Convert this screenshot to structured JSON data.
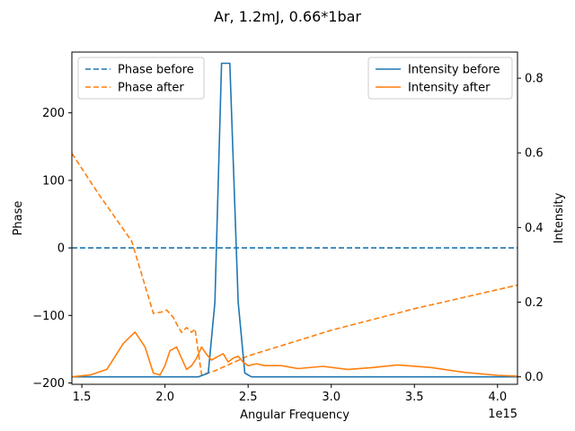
{
  "chart_data": {
    "type": "line",
    "title": "Ar, 1.2mJ, 0.66*1bar",
    "xlabel": "Angular Frequency",
    "x_offset_label": "1e15",
    "xlim": [
      1.44,
      4.12
    ],
    "xticks": [
      1.5,
      2.0,
      2.5,
      3.0,
      3.5,
      4.0
    ],
    "xtick_labels": [
      "1.5",
      "2.0",
      "2.5",
      "3.0",
      "3.5",
      "4.0"
    ],
    "left_axis": {
      "label": "Phase",
      "ylim": [
        -202,
        290
      ],
      "ticks": [
        -200,
        -100,
        0,
        100,
        200
      ],
      "tick_labels": [
        "−200",
        "−100",
        "0",
        "100",
        "200"
      ]
    },
    "right_axis": {
      "label": "Intensity",
      "ylim": [
        -0.02,
        0.87
      ],
      "ticks": [
        0.0,
        0.2,
        0.4,
        0.6,
        0.8
      ],
      "tick_labels": [
        "0.0",
        "0.2",
        "0.4",
        "0.6",
        "0.8"
      ]
    },
    "legend_left": {
      "position": "upper-left",
      "entries": [
        "Phase before",
        "Phase after"
      ]
    },
    "legend_right": {
      "position": "upper-right",
      "entries": [
        "Intensity before",
        "Intensity after"
      ]
    },
    "series": [
      {
        "name": "Phase before",
        "axis": "left",
        "style": "dashed",
        "color": "#1f77b4",
        "x": [
          1.44,
          4.12
        ],
        "y": [
          0,
          0
        ]
      },
      {
        "name": "Phase after",
        "axis": "left",
        "style": "dashed",
        "color": "#ff7f0e",
        "x": [
          1.44,
          1.6,
          1.8,
          1.93,
          1.98,
          2.01,
          2.05,
          2.08,
          2.1,
          2.13,
          2.16,
          2.18,
          2.22,
          2.3,
          2.5,
          3.0,
          3.5,
          4.12
        ],
        "y": [
          140,
          80,
          10,
          -97,
          -95,
          -92,
          -103,
          -117,
          -125,
          -118,
          -125,
          -120,
          -188,
          -182,
          -160,
          -122,
          -90,
          -55
        ]
      },
      {
        "name": "Intensity before",
        "axis": "right",
        "style": "solid",
        "color": "#1f77b4",
        "x": [
          1.44,
          2.2,
          2.26,
          2.3,
          2.34,
          2.39,
          2.44,
          2.48,
          2.52,
          4.12
        ],
        "y": [
          0.0,
          0.0,
          0.01,
          0.2,
          0.84,
          0.84,
          0.2,
          0.01,
          0.0,
          0.0
        ]
      },
      {
        "name": "Intensity after",
        "axis": "right",
        "style": "solid",
        "color": "#ff7f0e",
        "x": [
          1.44,
          1.55,
          1.65,
          1.75,
          1.82,
          1.88,
          1.93,
          1.97,
          2.0,
          2.03,
          2.07,
          2.1,
          2.13,
          2.16,
          2.19,
          2.22,
          2.25,
          2.28,
          2.32,
          2.35,
          2.38,
          2.41,
          2.44,
          2.47,
          2.5,
          2.55,
          2.6,
          2.7,
          2.8,
          2.95,
          3.1,
          3.25,
          3.4,
          3.6,
          3.8,
          4.0,
          4.12
        ],
        "y": [
          0.0,
          0.005,
          0.02,
          0.09,
          0.12,
          0.08,
          0.01,
          0.005,
          0.03,
          0.07,
          0.08,
          0.05,
          0.02,
          0.03,
          0.05,
          0.08,
          0.06,
          0.045,
          0.055,
          0.062,
          0.04,
          0.05,
          0.055,
          0.04,
          0.03,
          0.035,
          0.03,
          0.03,
          0.022,
          0.028,
          0.02,
          0.025,
          0.032,
          0.025,
          0.012,
          0.004,
          0.002
        ]
      }
    ]
  }
}
